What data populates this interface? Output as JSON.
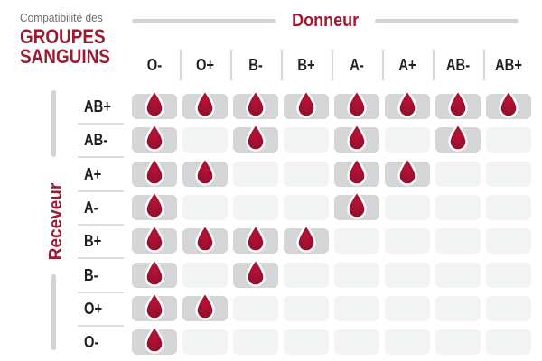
{
  "title": {
    "line1": "Compatibilité des",
    "line2": "GROUPES",
    "line3": "SANGUINS"
  },
  "axis": {
    "donor_label": "Donneur",
    "receiver_label": "Receveur"
  },
  "chart_data": {
    "type": "heatmap",
    "title": "Compatibilité des GROUPES SANGUINS",
    "col_axis_label": "Donneur",
    "row_axis_label": "Receveur",
    "columns": [
      "O-",
      "O+",
      "B-",
      "B+",
      "A-",
      "A+",
      "AB-",
      "AB+"
    ],
    "rows": [
      "AB+",
      "AB-",
      "A+",
      "A-",
      "B+",
      "B-",
      "O+",
      "O-"
    ],
    "cell_symbol": "blood-drop-icon",
    "legend_position": "none",
    "matrix": [
      [
        1,
        1,
        1,
        1,
        1,
        1,
        1,
        1
      ],
      [
        1,
        0,
        1,
        0,
        1,
        0,
        1,
        0
      ],
      [
        1,
        1,
        0,
        0,
        1,
        1,
        0,
        0
      ],
      [
        1,
        0,
        0,
        0,
        1,
        0,
        0,
        0
      ],
      [
        1,
        1,
        1,
        1,
        0,
        0,
        0,
        0
      ],
      [
        1,
        0,
        1,
        0,
        0,
        0,
        0,
        0
      ],
      [
        1,
        1,
        0,
        0,
        0,
        0,
        0,
        0
      ],
      [
        1,
        0,
        0,
        0,
        0,
        0,
        0,
        0
      ]
    ]
  },
  "colors": {
    "accent_red": "#9d1b31",
    "drop_red": "#b21337",
    "drop_red_dark": "#8d0e29",
    "filled_cell_bg": "#d3d5d6",
    "empty_cell_bg": "#f2f3f3",
    "line_gray": "#d1d3d4",
    "text_dark": "#231f20",
    "text_gray": "#6d6e71"
  }
}
